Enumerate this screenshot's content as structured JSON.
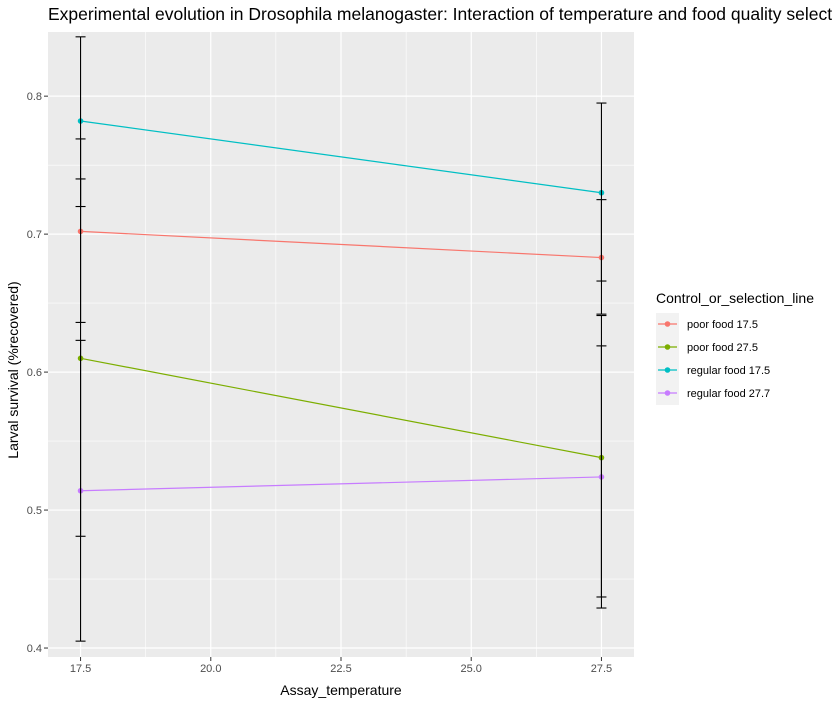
{
  "chart_data": {
    "type": "line",
    "title": "Experimental evolution in Drosophila melanogaster: Interaction of temperature and food quality selection",
    "xlabel": "Assay_temperature",
    "ylabel": "Larval survival (%recovered)",
    "x": [
      17.5,
      27.5
    ],
    "xlim": [
      16.875,
      28.125
    ],
    "ylim": [
      0.3935,
      0.8465
    ],
    "x_ticks": [
      "17.5",
      "20.0",
      "22.5",
      "25.0",
      "27.5"
    ],
    "y_ticks": [
      "0.4",
      "0.5",
      "0.6",
      "0.7",
      "0.8"
    ],
    "grid": true,
    "legend": {
      "title": "Control_or_selection_line",
      "position": "right"
    },
    "series": [
      {
        "name": "poor food 17.5",
        "color": "#F8766D",
        "values": [
          0.702,
          0.683
        ],
        "err_low": [
          0.636,
          0.642
        ],
        "err_high": [
          0.769,
          0.725
        ]
      },
      {
        "name": "poor food 27.5",
        "color": "#7CAE00",
        "values": [
          0.61,
          0.538
        ],
        "err_low": [
          0.481,
          0.437
        ],
        "err_high": [
          0.74,
          0.641
        ]
      },
      {
        "name": "regular food 17.5",
        "color": "#00BFC4",
        "values": [
          0.782,
          0.73
        ],
        "err_low": [
          0.72,
          0.666
        ],
        "err_high": [
          0.843,
          0.795
        ]
      },
      {
        "name": "regular food 27.7",
        "color": "#C77CFF",
        "values": [
          0.514,
          0.524
        ],
        "err_low": [
          0.405,
          0.429
        ],
        "err_high": [
          0.623,
          0.619
        ]
      }
    ]
  }
}
